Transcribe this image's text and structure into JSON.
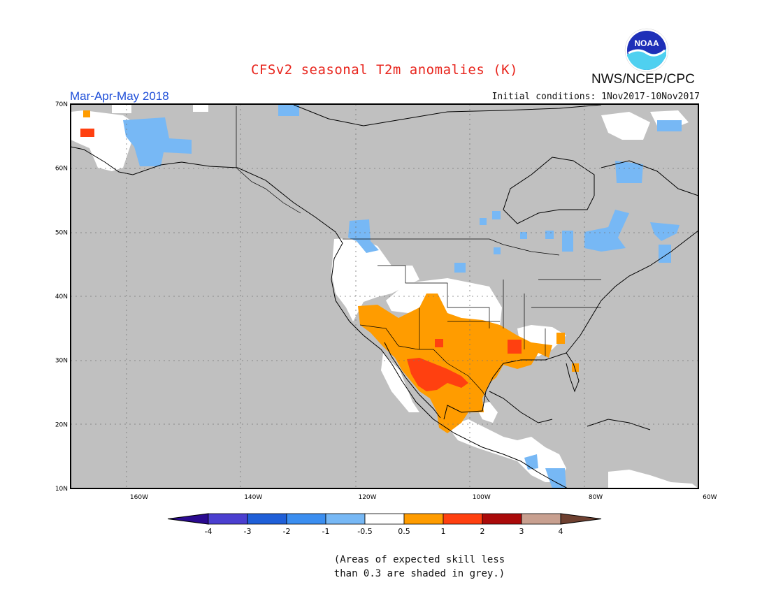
{
  "title": "CFSv2 seasonal T2m anomalies (K)",
  "organization": "NWS/NCEP/CPC",
  "logo_text": "NOAA",
  "period": "Mar-Apr-May 2018",
  "initial_conditions": "Initial conditions: 1Nov2017-10Nov2017",
  "lat_labels": [
    "70N",
    "60N",
    "50N",
    "40N",
    "30N",
    "20N",
    "10N"
  ],
  "lon_labels": [
    "160W",
    "140W",
    "120W",
    "100W",
    "80W",
    "60W"
  ],
  "map_extent": {
    "lon": [
      -172,
      -62
    ],
    "lat": [
      10,
      70
    ]
  },
  "colorbar": {
    "tick_labels": [
      "-4",
      "-3",
      "-2",
      "-1",
      "-0.5",
      "0.5",
      "1",
      "2",
      "3",
      "4"
    ],
    "colors": [
      "#2a0a90",
      "#4b3fd0",
      "#1f5fd8",
      "#3b8ef0",
      "#77b8f5",
      "#ffffff",
      "#ff9c00",
      "#ff4010",
      "#aa0a0a",
      "#c8a090",
      "#6e4030"
    ]
  },
  "skill_note_lines": [
    "(Areas of expected skill less",
    "than 0.3 are shaded in grey.)"
  ],
  "colors": {
    "grey_low_skill": "#c0c0c0",
    "title": "#e8261e",
    "period": "#1f4fd8"
  }
}
